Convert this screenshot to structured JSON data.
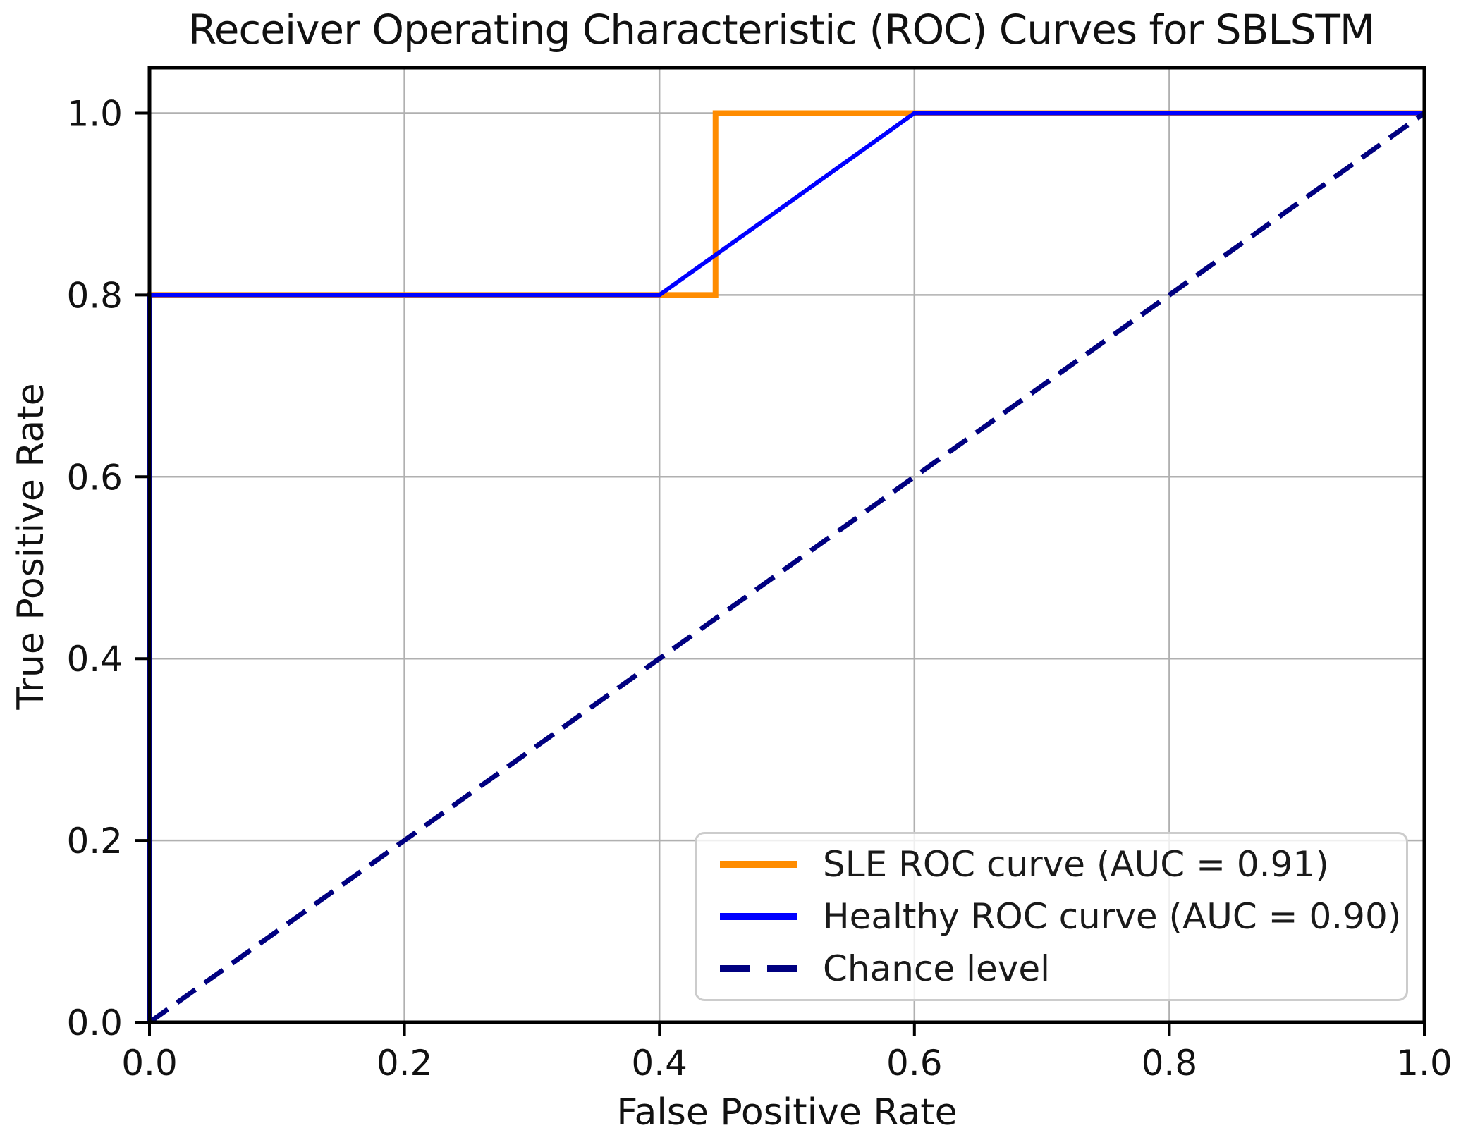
{
  "figure": {
    "title": "Receiver Operating Characteristic (ROC) Curves for SBLSTM"
  },
  "chart_data": {
    "type": "line",
    "title": "Receiver Operating Characteristic (ROC) Curves for SBLSTM",
    "xlabel": "False Positive Rate",
    "ylabel": "True Positive Rate",
    "xlim": [
      0.0,
      1.0
    ],
    "ylim": [
      0.0,
      1.05
    ],
    "xticks": [
      0.0,
      0.2,
      0.4,
      0.6,
      0.8,
      1.0
    ],
    "yticks": [
      0.0,
      0.2,
      0.4,
      0.6,
      0.8,
      1.0
    ],
    "tick_format": "one-decimal",
    "grid": true,
    "legend_position": "lower right",
    "series": [
      {
        "name": "SLE ROC curve (AUC = 0.91)",
        "auc": 0.91,
        "color": "#FF8C00",
        "style": "solid",
        "x": [
          0.0,
          0.0,
          0.444,
          0.444,
          1.0
        ],
        "y": [
          0.0,
          0.8,
          0.8,
          1.0,
          1.0
        ]
      },
      {
        "name": "Healthy ROC curve (AUC = 0.90)",
        "auc": 0.9,
        "color": "#0000FF",
        "style": "solid",
        "x": [
          0.0,
          0.0,
          0.4,
          0.6,
          1.0
        ],
        "y": [
          0.0,
          0.8,
          0.8,
          1.0,
          1.0
        ]
      },
      {
        "name": "Chance level",
        "color": "#000080",
        "style": "dashed",
        "x": [
          0.0,
          1.0
        ],
        "y": [
          0.0,
          1.0
        ]
      }
    ],
    "colors": {
      "grid": "#b0b0b0",
      "frame": "#000000",
      "tick_text": "#111111",
      "legend_border": "#cccccc",
      "background": "#ffffff"
    }
  }
}
